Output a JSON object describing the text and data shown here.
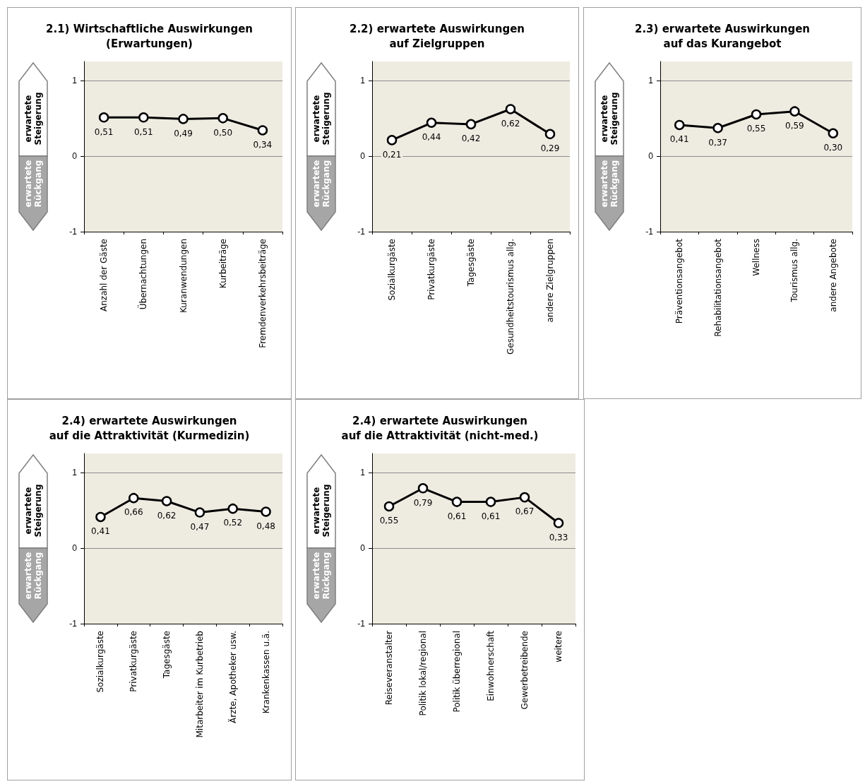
{
  "chart_data": [
    {
      "type": "line",
      "title": "2.1) Wirtschaftliche Auswirkungen\n(Erwartungen)",
      "categories": [
        "Anzahl der Gäste",
        "Übernachtungen",
        "Kuranwendungen",
        "Kurbeiträge",
        "Fremdenverkehrsbeiträge"
      ],
      "values": [
        0.51,
        0.51,
        0.49,
        0.5,
        0.34
      ],
      "value_labels": [
        "0,51",
        "0,51",
        "0,49",
        "0,50",
        "0,34"
      ],
      "color": "#000000",
      "ylim": [
        -1,
        1.25
      ],
      "yticks": [
        -1,
        0,
        1
      ],
      "grid": "y",
      "marker": "circle",
      "line_style": "solid",
      "annotations": [
        "erwartete Steigerung",
        "erwartete Rückgang"
      ]
    },
    {
      "type": "line",
      "title": "2.2) erwartete Auswirkungen\nauf Zielgruppen",
      "categories": [
        "Sozialkurgäste",
        "Privatkurgäste",
        "Tagesgäste",
        "Gesundheitstourismus allg.",
        "andere Zielgruppen"
      ],
      "values": [
        0.21,
        0.44,
        0.42,
        0.62,
        0.29
      ],
      "value_labels": [
        "0,21",
        "0,44",
        "0,42",
        "0,62",
        "0,29"
      ],
      "color": "#000000",
      "ylim": [
        -1,
        1.25
      ],
      "yticks": [
        -1,
        0,
        1
      ],
      "grid": "y",
      "marker": "circle",
      "line_style": "solid",
      "annotations": [
        "erwartete Steigerung",
        "erwartete Rückgang"
      ]
    },
    {
      "type": "line",
      "title": "2.3) erwartete Auswirkungen\nauf das Kurangebot",
      "categories": [
        "Präventionsangebot",
        "Rehabilitationsangebot",
        "Wellness",
        "Tourismus allg.",
        "andere Angebote"
      ],
      "values": [
        0.41,
        0.37,
        0.55,
        0.59,
        0.3
      ],
      "value_labels": [
        "0,41",
        "0,37",
        "0,55",
        "0,59",
        "0,30"
      ],
      "color": "#000000",
      "ylim": [
        -1,
        1.25
      ],
      "yticks": [
        -1,
        0,
        1
      ],
      "grid": "y",
      "marker": "circle",
      "line_style": "solid",
      "annotations": [
        "erwartete Steigerung",
        "erwartete Rückgang"
      ]
    },
    {
      "type": "line",
      "title": "2.4) erwartete Auswirkungen\nauf die Attraktivität (Kurmedizin)",
      "categories": [
        "Sozialkurgäste",
        "Privatkurgäste",
        "Tagesgäste",
        "Mitarbeiter im Kurbetrieb",
        "Ärzte, Apotheker usw.",
        "Krankenkassen u.ä."
      ],
      "values": [
        0.41,
        0.66,
        0.62,
        0.47,
        0.52,
        0.48
      ],
      "value_labels": [
        "0,41",
        "0,66",
        "0,62",
        "0,47",
        "0,52",
        "0,48"
      ],
      "color": "#000000",
      "ylim": [
        -1,
        1.25
      ],
      "yticks": [
        -1,
        0,
        1
      ],
      "grid": "y",
      "marker": "circle",
      "line_style": "solid",
      "annotations": [
        "erwartete Steigerung",
        "erwartete Rückgang"
      ]
    },
    {
      "type": "line",
      "title": "2.4) erwartete Auswirkungen\nauf die Attraktivität (nicht-med.)",
      "categories": [
        "Reiseveranstalter",
        "Politik lokal/regional",
        "Politik überregional",
        "Einwohnerschaft",
        "Gewerbetreibende",
        "weitere"
      ],
      "values": [
        0.55,
        0.79,
        0.61,
        0.61,
        0.67,
        0.33
      ],
      "value_labels": [
        "0,55",
        "0,79",
        "0,61",
        "0,61",
        "0,67",
        "0,33"
      ],
      "color": "#000000",
      "ylim": [
        -1,
        1.25
      ],
      "yticks": [
        -1,
        0,
        1
      ],
      "grid": "y",
      "marker": "circle",
      "line_style": "solid",
      "annotations": [
        "erwartete Steigerung",
        "erwartete Rückgang"
      ]
    }
  ]
}
